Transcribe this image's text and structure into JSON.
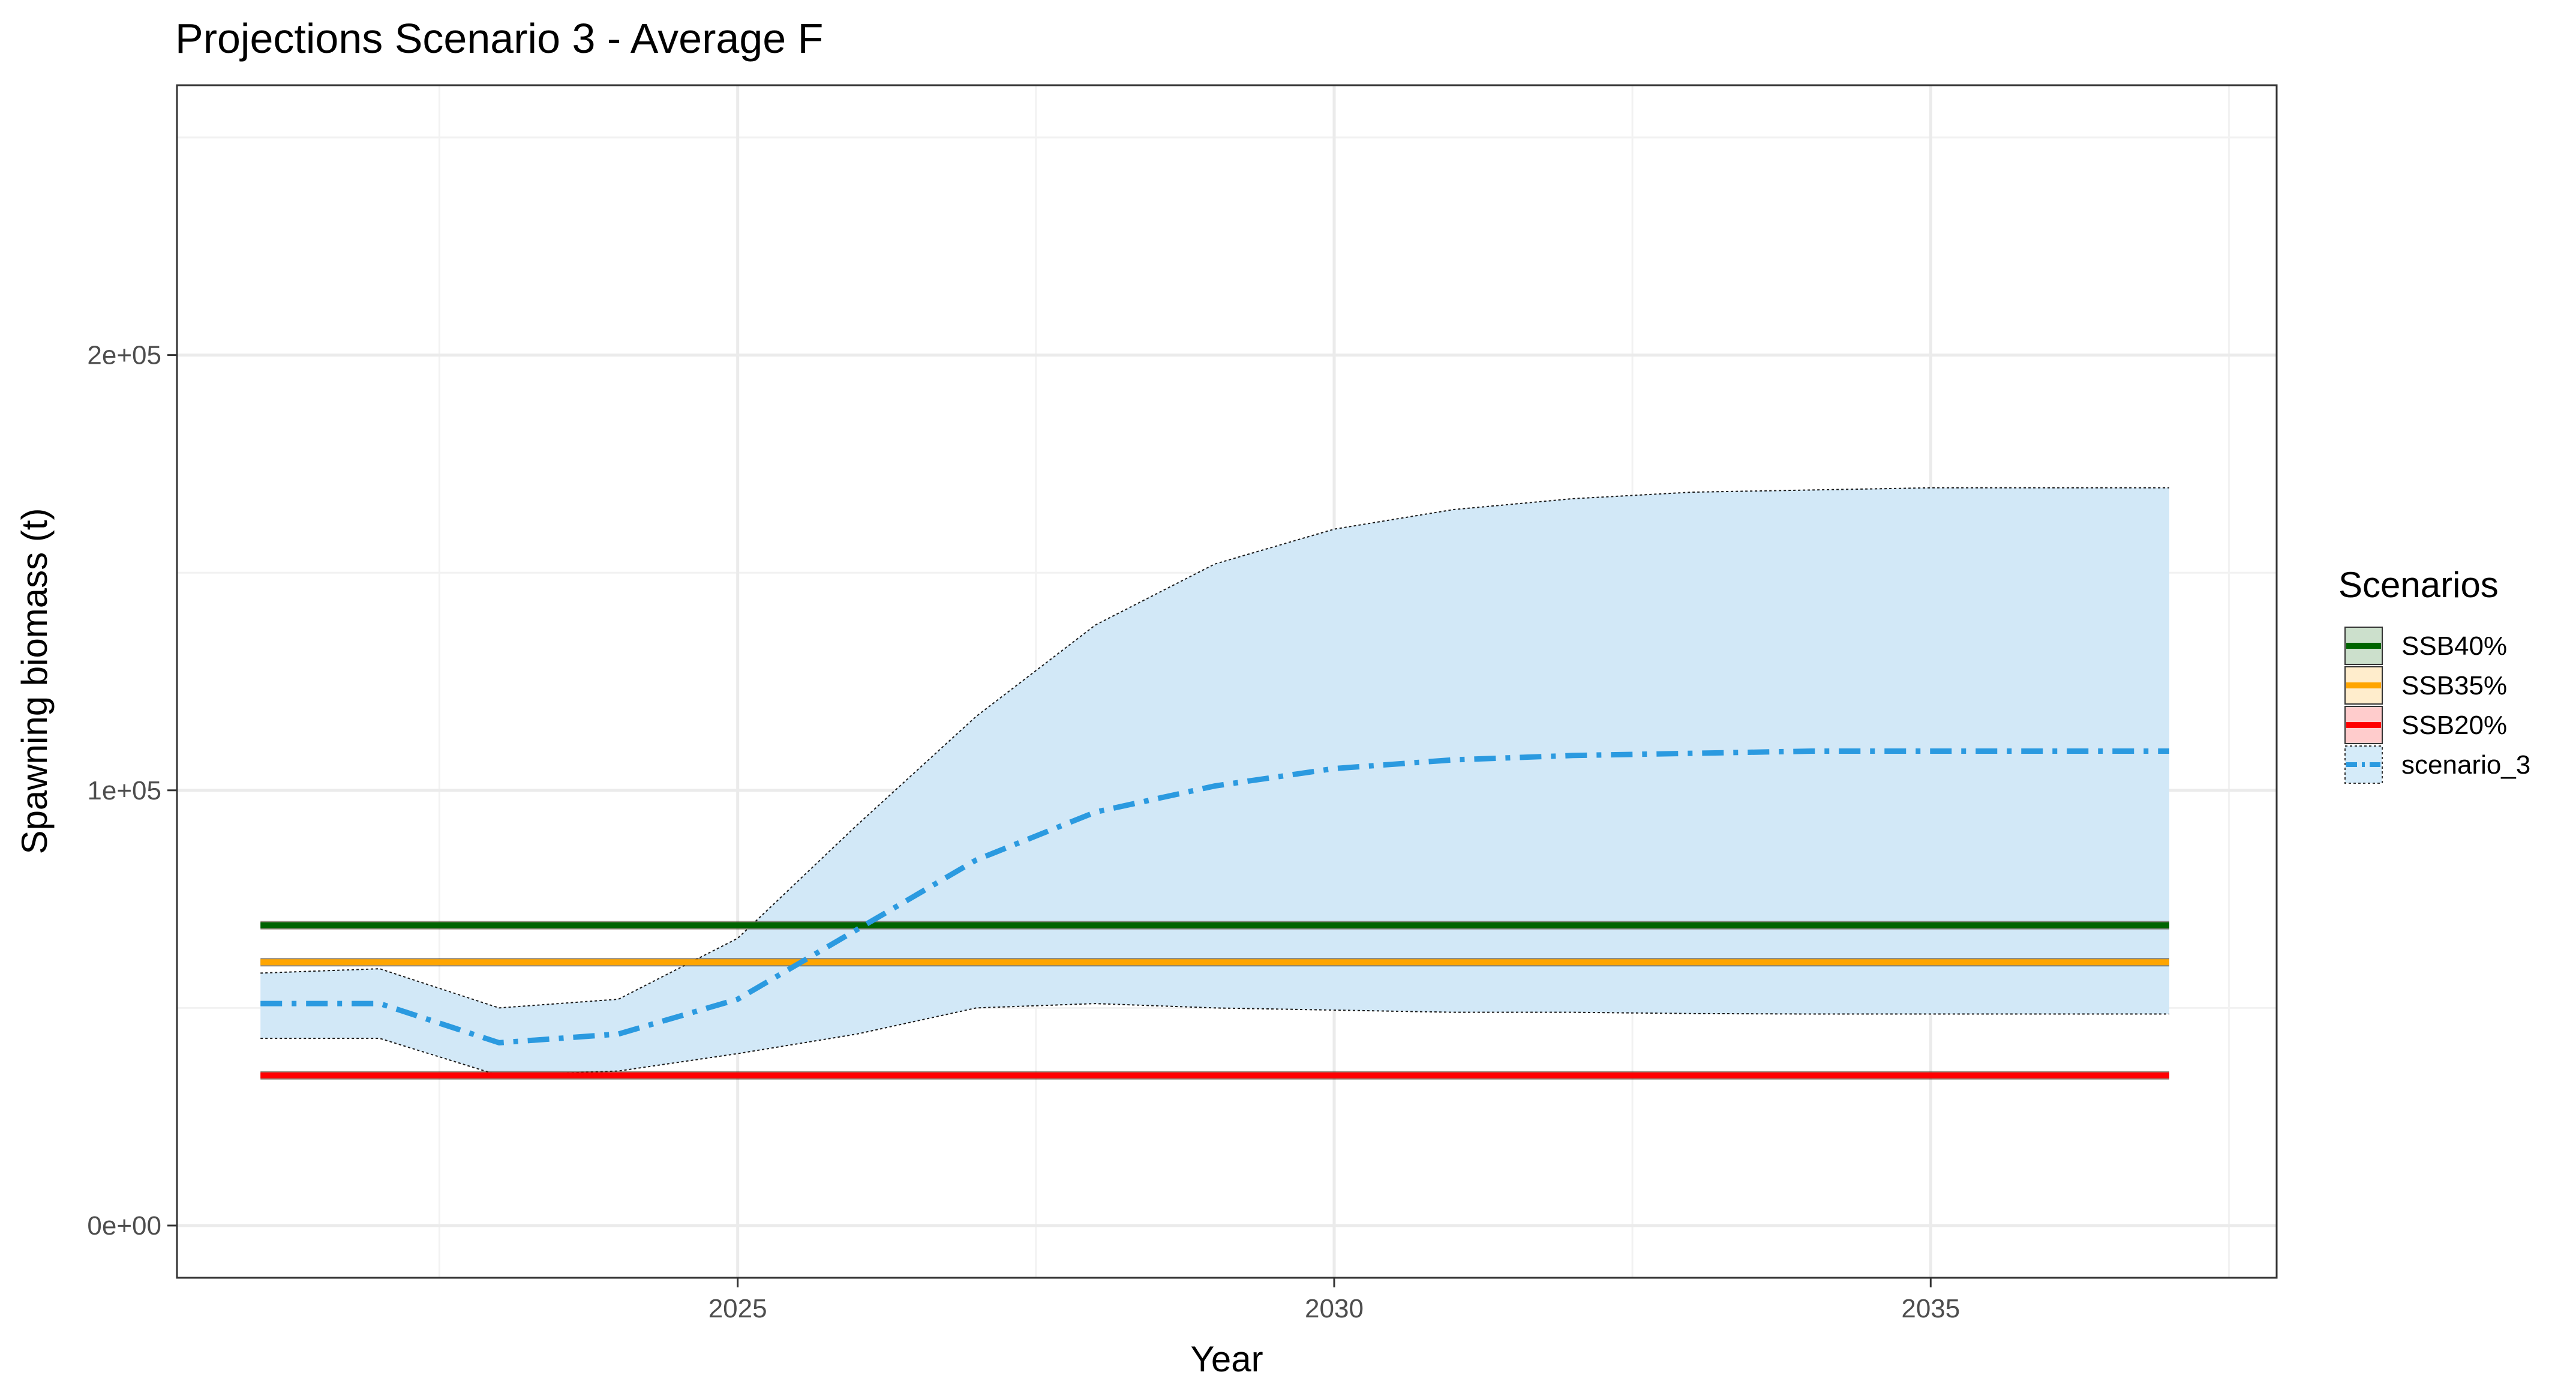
{
  "chart_data": {
    "type": "line",
    "title": "Projections Scenario 3 - Average F",
    "xlabel": "Year",
    "ylabel": "Spawning biomass (t)",
    "xlim": [
      2020.3,
      2037.9
    ],
    "ylim": [
      -12000,
      262000
    ],
    "x_ticks": [
      2025,
      2030,
      2035
    ],
    "x_tick_labels": [
      "2025",
      "2030",
      "2035"
    ],
    "x_minor_ticks": [
      2022.5,
      2027.5,
      2032.5,
      2037.5
    ],
    "y_ticks": [
      0,
      100000,
      200000
    ],
    "y_tick_labels": [
      "0e+00",
      "1e+05",
      "2e+05"
    ],
    "y_minor_ticks": [
      50000,
      150000,
      250000
    ],
    "grid": true,
    "legend": {
      "title": "Scenarios",
      "placement": "right",
      "entries": [
        {
          "label": "SSB40%",
          "line_color": "#006400",
          "fill_color": "#006400",
          "fill_opacity": 0.2,
          "dash": "solid"
        },
        {
          "label": "SSB35%",
          "line_color": "#FFA500",
          "fill_color": "#FFA500",
          "fill_opacity": 0.2,
          "dash": "solid"
        },
        {
          "label": "SSB20%",
          "line_color": "#FF0000",
          "fill_color": "#FF0000",
          "fill_opacity": 0.2,
          "dash": "solid"
        },
        {
          "label": "scenario_3",
          "line_color": "#2B9AE0",
          "fill_color": "#2B9AE0",
          "fill_opacity": 0.2,
          "dash": "dashdot"
        }
      ]
    },
    "reference_lines": [
      {
        "name": "SSB40%",
        "y": 69000,
        "x_start": 2021,
        "x_end": 2037,
        "color": "#006400"
      },
      {
        "name": "SSB35%",
        "y": 60500,
        "x_start": 2021,
        "x_end": 2037,
        "color": "#FFA500"
      },
      {
        "name": "SSB20%",
        "y": 34500,
        "x_start": 2021,
        "x_end": 2037,
        "color": "#FF0000"
      }
    ],
    "series": [
      {
        "name": "scenario_3",
        "color": "#2B9AE0",
        "x": [
          2021,
          2022,
          2023,
          2024,
          2025,
          2026,
          2027,
          2028,
          2029,
          2030,
          2031,
          2032,
          2033,
          2034,
          2035,
          2036,
          2037
        ],
        "y": [
          51000,
          51000,
          42000,
          44000,
          52000,
          68000,
          84000,
          95000,
          101000,
          105000,
          107000,
          108000,
          108500,
          109000,
          109000,
          109000,
          109000
        ],
        "lower": [
          43000,
          43000,
          34500,
          35500,
          39500,
          44000,
          50000,
          51000,
          50000,
          49500,
          49000,
          49000,
          48700,
          48600,
          48600,
          48600,
          48600
        ],
        "upper": [
          58000,
          59000,
          50000,
          52000,
          66000,
          92000,
          117000,
          138000,
          152000,
          160000,
          164500,
          167000,
          168500,
          169000,
          169500,
          169500,
          169500
        ]
      }
    ]
  },
  "colors": {
    "band_fill": "#D2E8F7",
    "band_edge": "#1A1A1A",
    "grid_major": "#EBEBEB",
    "grid_minor": "#F2F2F2",
    "panel_border": "#333333"
  }
}
